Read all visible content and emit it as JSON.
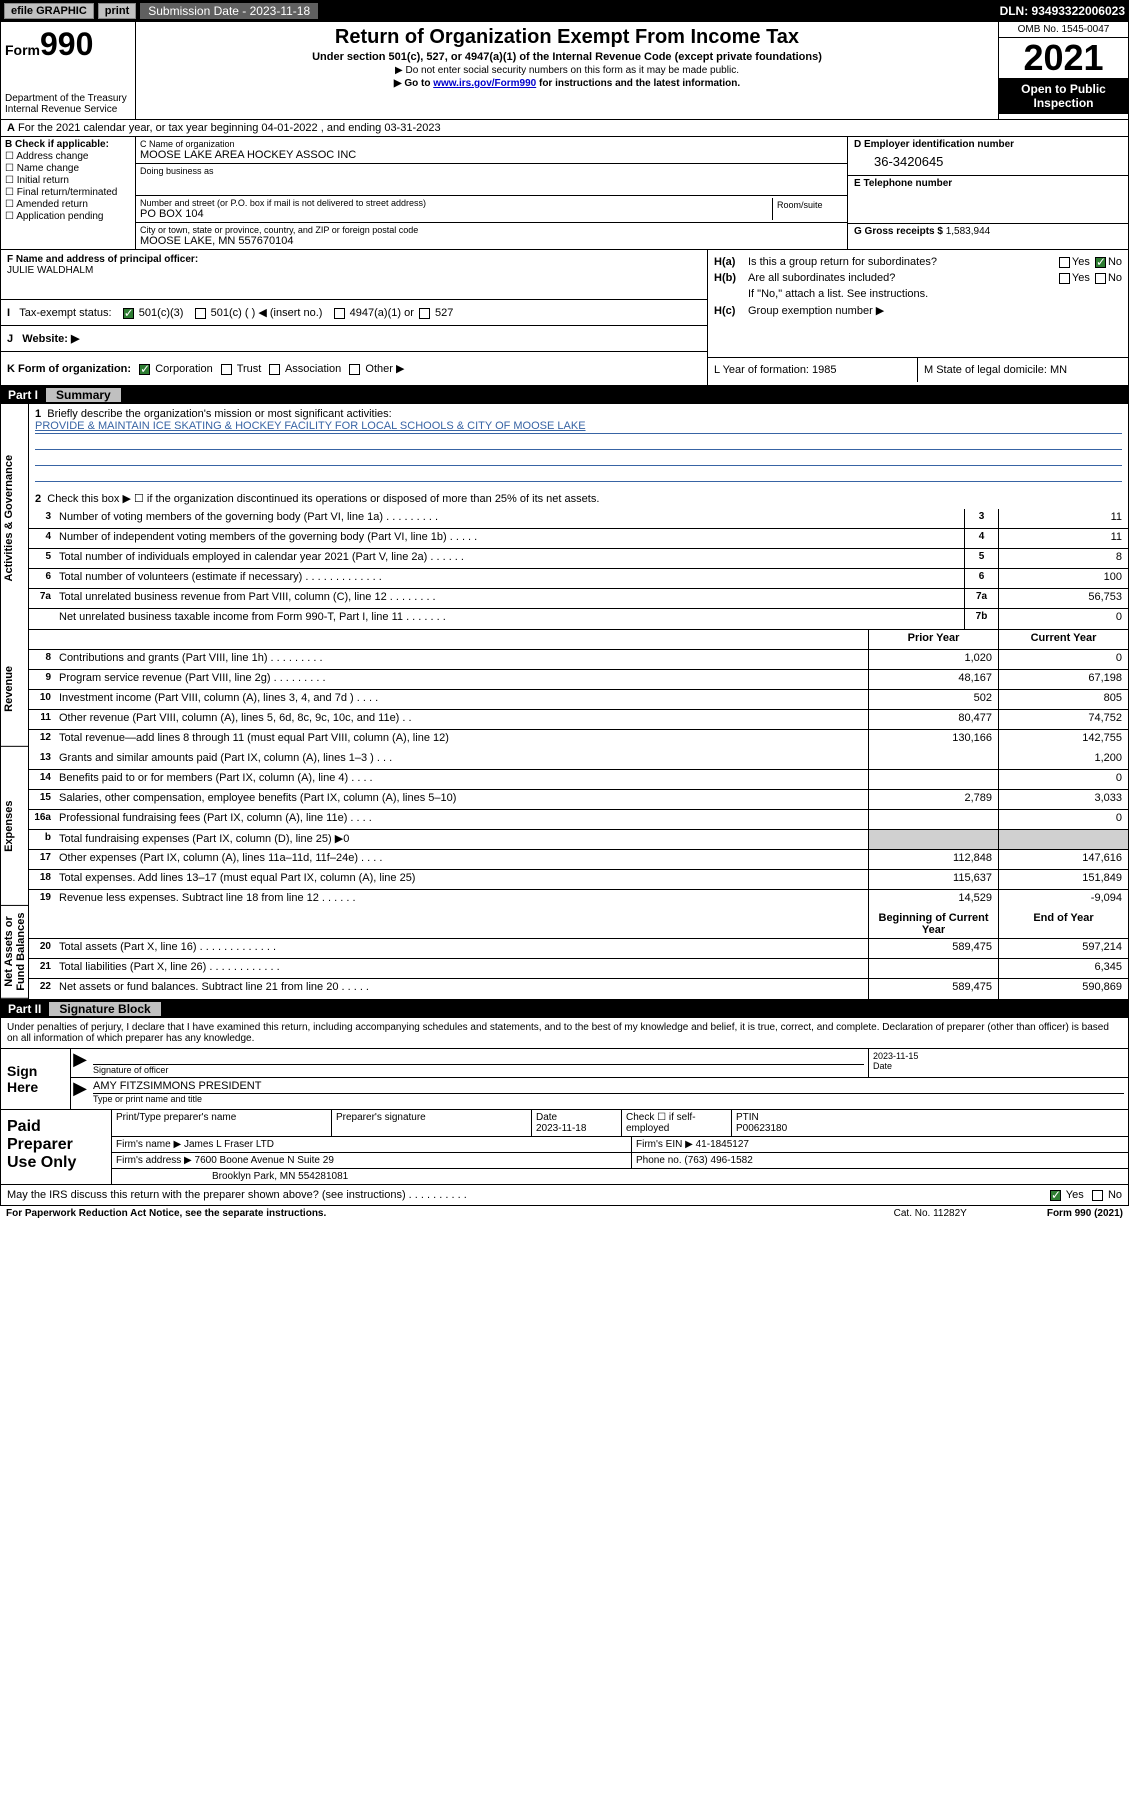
{
  "topbar": {
    "efile": "efile GRAPHIC",
    "print": "print",
    "submission_label": "Submission Date - 2023-11-18",
    "dln": "DLN: 93493322006023"
  },
  "header": {
    "form_word": "Form",
    "form_num": "990",
    "title": "Return of Organization Exempt From Income Tax",
    "sub1": "Under section 501(c), 527, or 4947(a)(1) of the Internal Revenue Code (except private foundations)",
    "sub2": "▶ Do not enter social security numbers on this form as it may be made public.",
    "sub3_pre": "▶ Go to ",
    "sub3_link": "www.irs.gov/Form990",
    "sub3_post": " for instructions and the latest information.",
    "dept": "Department of the Treasury",
    "irs": "Internal Revenue Service",
    "omb": "OMB No. 1545-0047",
    "year": "2021",
    "inspect": "Open to Public Inspection"
  },
  "rowA": {
    "text": "For the 2021 calendar year, or tax year beginning 04-01-2022    , and ending 03-31-2023",
    "prefix": "A"
  },
  "B": {
    "label": "B Check if applicable:",
    "items": [
      "Address change",
      "Name change",
      "Initial return",
      "Final return/terminated",
      "Amended return",
      "Application pending"
    ]
  },
  "C": {
    "name_lbl": "C Name of organization",
    "name": "MOOSE LAKE AREA HOCKEY ASSOC INC",
    "dba_lbl": "Doing business as",
    "dba": "",
    "street_lbl": "Number and street (or P.O. box if mail is not delivered to street address)",
    "street": "PO BOX 104",
    "room_lbl": "Room/suite",
    "city_lbl": "City or town, state or province, country, and ZIP or foreign postal code",
    "city": "MOOSE LAKE, MN  557670104"
  },
  "D": {
    "lbl": "D Employer identification number",
    "val": "36-3420645"
  },
  "E": {
    "lbl": "E Telephone number",
    "val": ""
  },
  "G": {
    "lbl": "G Gross receipts $",
    "val": "1,583,944"
  },
  "F": {
    "lbl": "F  Name and address of principal officer:",
    "val": "JULIE WALDHALM"
  },
  "H": {
    "a": "Is this a group return for subordinates?",
    "b": "Are all subordinates included?",
    "b_note": "If \"No,\" attach a list. See instructions.",
    "c": "Group exemption number ▶",
    "yes": "Yes",
    "no": "No"
  },
  "I": {
    "lbl": "Tax-exempt status:",
    "o1": "501(c)(3)",
    "o2": "501(c) (   ) ◀ (insert no.)",
    "o3": "4947(a)(1) or",
    "o4": "527"
  },
  "J": {
    "lbl": "Website: ▶",
    "val": ""
  },
  "K": {
    "lbl": "K Form of organization:",
    "o1": "Corporation",
    "o2": "Trust",
    "o3": "Association",
    "o4": "Other ▶"
  },
  "L": {
    "lbl": "L Year of formation: 1985"
  },
  "M": {
    "lbl": "M State of legal domicile: MN"
  },
  "part1": {
    "num": "Part I",
    "title": "Summary"
  },
  "vtabs": [
    "Activities & Governance",
    "Revenue",
    "Expenses",
    "Net Assets or Fund Balances"
  ],
  "mission": {
    "lbl": "Briefly describe the organization's mission or most significant activities:",
    "text": "PROVIDE & MAINTAIN ICE SKATING & HOCKEY FACILITY FOR LOCAL SCHOOLS & CITY OF MOOSE LAKE"
  },
  "line2": "Check this box ▶ ☐  if the organization discontinued its operations or disposed of more than 25% of its net assets.",
  "gov_rows": [
    {
      "n": "3",
      "d": "Number of voting members of the governing body (Part VI, line 1a)   .    .    .    .    .    .    .    .    .",
      "b": "3",
      "v": "11"
    },
    {
      "n": "4",
      "d": "Number of independent voting members of the governing body (Part VI, line 1b)   .    .    .    .    .",
      "b": "4",
      "v": "11"
    },
    {
      "n": "5",
      "d": "Total number of individuals employed in calendar year 2021 (Part V, line 2a)   .    .    .    .    .    .",
      "b": "5",
      "v": "8"
    },
    {
      "n": "6",
      "d": "Total number of volunteers (estimate if necessary)   .    .    .    .    .    .    .    .    .    .    .    .    .",
      "b": "6",
      "v": "100"
    },
    {
      "n": "7a",
      "d": "Total unrelated business revenue from Part VIII, column (C), line 12   .    .    .    .    .    .    .    .",
      "b": "7a",
      "v": "56,753"
    },
    {
      "n": "",
      "d": "Net unrelated business taxable income from Form 990-T, Part I, line 11   .    .    .    .    .    .    .",
      "b": "7b",
      "v": "0"
    }
  ],
  "col_hdr": {
    "prior": "Prior Year",
    "current": "Current Year",
    "boy": "Beginning of Current Year",
    "eoy": "End of Year"
  },
  "rev_rows": [
    {
      "n": "8",
      "d": "Contributions and grants (Part VIII, line 1h)    .    .    .    .    .    .    .    .    .",
      "p": "1,020",
      "c": "0"
    },
    {
      "n": "9",
      "d": "Program service revenue (Part VIII, line 2g)    .    .    .    .    .    .    .    .    .",
      "p": "48,167",
      "c": "67,198"
    },
    {
      "n": "10",
      "d": "Investment income (Part VIII, column (A), lines 3, 4, and 7d )    .    .    .    .",
      "p": "502",
      "c": "805"
    },
    {
      "n": "11",
      "d": "Other revenue (Part VIII, column (A), lines 5, 6d, 8c, 9c, 10c, and 11e)    .    .",
      "p": "80,477",
      "c": "74,752"
    },
    {
      "n": "12",
      "d": "Total revenue—add lines 8 through 11 (must equal Part VIII, column (A), line 12)",
      "p": "130,166",
      "c": "142,755"
    }
  ],
  "exp_rows": [
    {
      "n": "13",
      "d": "Grants and similar amounts paid (Part IX, column (A), lines 1–3 )    .    .    .",
      "p": "",
      "c": "1,200"
    },
    {
      "n": "14",
      "d": "Benefits paid to or for members (Part IX, column (A), line 4)   .    .    .    .",
      "p": "",
      "c": "0"
    },
    {
      "n": "15",
      "d": "Salaries, other compensation, employee benefits (Part IX, column (A), lines 5–10)",
      "p": "2,789",
      "c": "3,033"
    },
    {
      "n": "16a",
      "d": "Professional fundraising fees (Part IX, column (A), line 11e)    .    .    .    .",
      "p": "",
      "c": "0"
    },
    {
      "n": "b",
      "d": "Total fundraising expenses (Part IX, column (D), line 25) ▶0",
      "p": "shade",
      "c": "shade"
    },
    {
      "n": "17",
      "d": "Other expenses (Part IX, column (A), lines 11a–11d, 11f–24e)   .    .    .    .",
      "p": "112,848",
      "c": "147,616"
    },
    {
      "n": "18",
      "d": "Total expenses. Add lines 13–17 (must equal Part IX, column (A), line 25)",
      "p": "115,637",
      "c": "151,849"
    },
    {
      "n": "19",
      "d": "Revenue less expenses. Subtract line 18 from line 12    .    .    .    .    .    .",
      "p": "14,529",
      "c": "-9,094"
    }
  ],
  "net_rows": [
    {
      "n": "20",
      "d": "Total assets (Part X, line 16)   .    .    .    .    .    .    .    .    .    .    .    .    .",
      "p": "589,475",
      "c": "597,214"
    },
    {
      "n": "21",
      "d": "Total liabilities (Part X, line 26)  .    .    .    .    .    .    .    .    .    .    .    .",
      "p": "",
      "c": "6,345"
    },
    {
      "n": "22",
      "d": "Net assets or fund balances. Subtract line 21 from line 20   .    .    .    .    .",
      "p": "589,475",
      "c": "590,869"
    }
  ],
  "part2": {
    "num": "Part II",
    "title": "Signature Block"
  },
  "decl": "Under penalties of perjury, I declare that I have examined this return, including accompanying schedules and statements, and to the best of my knowledge and belief, it is true, correct, and complete. Declaration of preparer (other than officer) is based on all information of which preparer has any knowledge.",
  "sign": {
    "here": "Sign Here",
    "sig_lbl": "Signature of officer",
    "date_lbl": "Date",
    "date_val": "2023-11-15",
    "name": "AMY FITZSIMMONS  PRESIDENT",
    "name_lbl": "Type or print name and title"
  },
  "prep": {
    "title": "Paid Preparer Use Only",
    "r1": {
      "c1": "Print/Type preparer's name",
      "c2": "Preparer's signature",
      "c3": "Date",
      "c3v": "2023-11-18",
      "c4": "Check ☐ if self-employed",
      "c5": "PTIN",
      "c5v": "P00623180"
    },
    "r2": {
      "c1": "Firm's name      ▶",
      "c1v": "James L Fraser LTD",
      "c2": "Firm's EIN ▶",
      "c2v": "41-1845127"
    },
    "r3": {
      "c1": "Firm's address ▶",
      "c1v": "7600 Boone Avenue N Suite 29",
      "c2": "Phone no.",
      "c2v": "(763) 496-1582"
    },
    "r4": {
      "c1": "",
      "c1v": "Brooklyn Park, MN  554281081"
    }
  },
  "footer": {
    "q": "May the IRS discuss this return with the preparer shown above? (see instructions)    .    .    .    .    .    .    .    .    .    .",
    "yes": "Yes",
    "no": "No",
    "pra": "For Paperwork Reduction Act Notice, see the separate instructions.",
    "cat": "Cat. No. 11282Y",
    "form": "Form 990 (2021)"
  },
  "colors": {
    "black": "#000000",
    "gray": "#c0c0c0",
    "darkgray": "#606060",
    "link": "#0000cc",
    "blueline": "#3864a4",
    "green": "#2e7d32",
    "shade": "#d0d0d0"
  }
}
